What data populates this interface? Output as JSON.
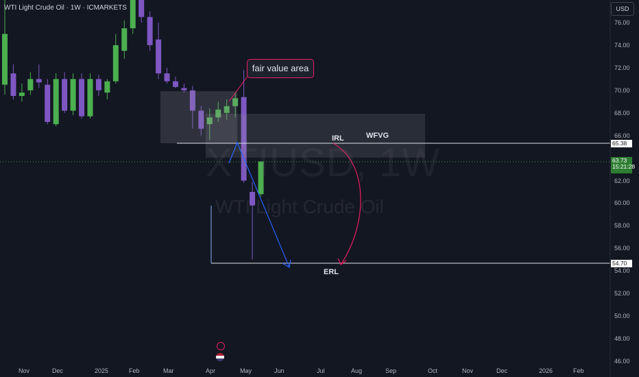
{
  "header": {
    "symbol_line": "WTI Light Crude Oil · 1W · ICMARKETS",
    "currency": "USD"
  },
  "watermark": {
    "ticker": "XTIUSD, 1W",
    "name": "WTI Light Crude Oil"
  },
  "y_axis_ticks": [
    "76.00",
    "74.00",
    "72.00",
    "70.00",
    "68.00",
    "66.00",
    "62.00",
    "60.00",
    "58.00",
    "56.00",
    "54.00",
    "52.00",
    "50.00",
    "48.00",
    "46.00"
  ],
  "x_axis_ticks": [
    "Nov",
    "Dec",
    "2025",
    "Feb",
    "Mar",
    "Apr",
    "May",
    "Jun",
    "Jul",
    "Aug",
    "Sep",
    "Oct",
    "Nov",
    "Dec",
    "2026",
    "Feb"
  ],
  "price_tags": {
    "irl_level": "65.38",
    "current_price": "63.73",
    "countdown": "15:21:28",
    "erl_level": "54.70"
  },
  "annotations": {
    "fair_value_area": "fair value area",
    "irl": "IRL",
    "wfvg": "WFVG",
    "erl": "ERL"
  },
  "colors": {
    "up": "#4caf50",
    "down": "#7e57c2",
    "arrow_blue": "#2962ff",
    "arrow_red": "#e91e63",
    "bg": "#131722"
  },
  "chart_data": {
    "type": "candlestick",
    "title": "WTI Light Crude Oil · 1W · ICMARKETS",
    "x_axis": [
      "Nov",
      "Dec",
      "2025",
      "Feb",
      "Mar",
      "Apr",
      "May",
      "Jun",
      "Jul",
      "Aug",
      "Sep",
      "Oct",
      "Nov",
      "Dec",
      "2026",
      "Feb"
    ],
    "ylim": [
      45.5,
      76.8
    ],
    "horizontal_levels": [
      65.38,
      54.7,
      63.73
    ],
    "candles": [
      {
        "o": 70.5,
        "h": 79.0,
        "l": 69.6,
        "c": 75.0
      },
      {
        "o": 71.5,
        "h": 72.3,
        "l": 69.2,
        "c": 69.5
      },
      {
        "o": 69.5,
        "h": 70.6,
        "l": 69.0,
        "c": 69.8
      },
      {
        "o": 70.0,
        "h": 71.6,
        "l": 69.6,
        "c": 71.0
      },
      {
        "o": 71.0,
        "h": 72.3,
        "l": 70.2,
        "c": 70.7
      },
      {
        "o": 70.5,
        "h": 71.0,
        "l": 67.0,
        "c": 67.2
      },
      {
        "o": 67.0,
        "h": 71.5,
        "l": 66.8,
        "c": 71.0
      },
      {
        "o": 71.0,
        "h": 71.6,
        "l": 68.0,
        "c": 68.2
      },
      {
        "o": 68.2,
        "h": 71.5,
        "l": 67.8,
        "c": 71.0
      },
      {
        "o": 71.0,
        "h": 71.5,
        "l": 67.5,
        "c": 67.7
      },
      {
        "o": 67.7,
        "h": 71.5,
        "l": 67.5,
        "c": 71.0
      },
      {
        "o": 71.0,
        "h": 71.4,
        "l": 69.5,
        "c": 70.0
      },
      {
        "o": 69.8,
        "h": 71.0,
        "l": 69.2,
        "c": 70.8
      },
      {
        "o": 70.8,
        "h": 75.0,
        "l": 70.6,
        "c": 74.0
      },
      {
        "o": 73.5,
        "h": 76.2,
        "l": 72.8,
        "c": 75.5
      },
      {
        "o": 75.5,
        "h": 79.5,
        "l": 75.0,
        "c": 79.0
      },
      {
        "o": 79.0,
        "h": 80.0,
        "l": 76.0,
        "c": 76.5
      },
      {
        "o": 76.5,
        "h": 77.0,
        "l": 73.5,
        "c": 74.0
      },
      {
        "o": 74.5,
        "h": 76.0,
        "l": 71.0,
        "c": 71.5
      },
      {
        "o": 71.5,
        "h": 72.0,
        "l": 70.6,
        "c": 70.8
      },
      {
        "o": 70.8,
        "h": 71.2,
        "l": 70.2,
        "c": 70.3
      },
      {
        "o": 70.2,
        "h": 70.6,
        "l": 69.8,
        "c": 70.0
      },
      {
        "o": 70.0,
        "h": 70.4,
        "l": 66.6,
        "c": 68.2
      },
      {
        "o": 68.2,
        "h": 68.6,
        "l": 66.0,
        "c": 66.6
      },
      {
        "o": 67.0,
        "h": 68.4,
        "l": 65.6,
        "c": 67.6
      },
      {
        "o": 67.6,
        "h": 69.0,
        "l": 67.2,
        "c": 68.3
      },
      {
        "o": 68.0,
        "h": 69.2,
        "l": 67.4,
        "c": 68.6
      },
      {
        "o": 68.6,
        "h": 69.8,
        "l": 67.6,
        "c": 69.3
      },
      {
        "o": 69.4,
        "h": 71.8,
        "l": 61.8,
        "c": 62.0
      },
      {
        "o": 61.0,
        "h": 61.9,
        "l": 55.0,
        "c": 59.8
      },
      {
        "o": 60.8,
        "h": 63.7,
        "l": 60.6,
        "c": 63.7
      }
    ]
  }
}
